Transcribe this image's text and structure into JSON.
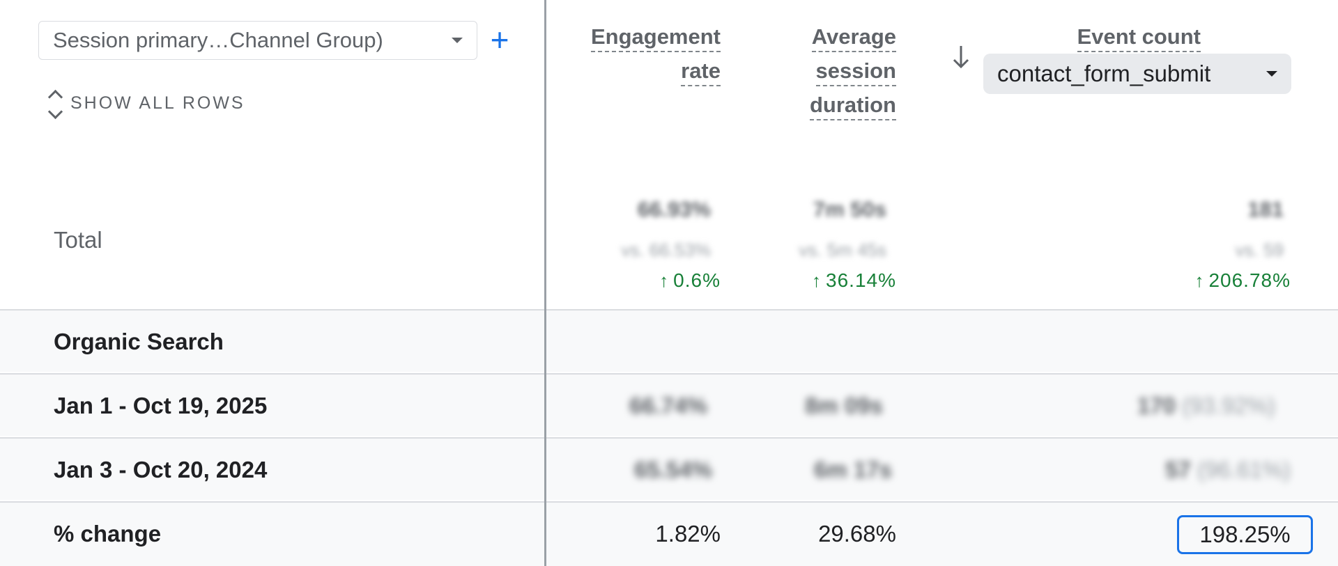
{
  "dimension_select": {
    "label": "Session primary…Channel Group)"
  },
  "show_all_rows_label": "SHOW ALL ROWS",
  "columns": {
    "engagement_rate": {
      "line1": "Engagement",
      "line2": "rate"
    },
    "avg_session_duration": {
      "line1": "Average",
      "line2": "session",
      "line3": "duration"
    },
    "event_count": {
      "title": "Event count",
      "selected_event": "contact_form_submit"
    }
  },
  "total": {
    "label": "Total",
    "engagement_rate": {
      "value": "66.93%",
      "compare": "vs. 66.53%",
      "change": "0.6%"
    },
    "avg_session_duration": {
      "value": "7m 50s",
      "compare": "vs. 5m 45s",
      "change": "36.14%"
    },
    "event_count": {
      "value": "181",
      "compare": "vs. 59",
      "change": "206.78%"
    }
  },
  "rows": [
    {
      "label": "Organic Search"
    },
    {
      "label": "Jan 1 - Oct 19, 2025",
      "engagement_rate": "66.74%",
      "avg_session_duration": "8m 09s",
      "event_count": "170",
      "event_share": "(93.92%)"
    },
    {
      "label": "Jan 3 - Oct 20, 2024",
      "engagement_rate": "65.54%",
      "avg_session_duration": "6m 17s",
      "event_count": "57",
      "event_share": "(96.61%)"
    },
    {
      "label": "% change",
      "engagement_rate": "1.82%",
      "avg_session_duration": "29.68%",
      "event_count": "198.25%"
    }
  ],
  "colors": {
    "accent": "#1a73e8",
    "positive": "#188038",
    "row_bg": "#f8f9fa"
  }
}
